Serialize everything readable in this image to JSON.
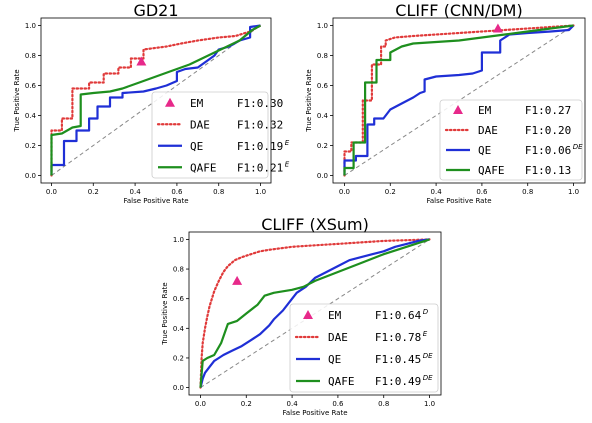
{
  "chart_data": [
    {
      "type": "line",
      "title": "GD21",
      "xlabel": "False Positive Rate",
      "ylabel": "True Positive Rate",
      "xlim": [
        -0.05,
        1.05
      ],
      "ylim": [
        -0.05,
        1.05
      ],
      "xticks": [
        "0.0",
        "0.2",
        "0.4",
        "0.6",
        "0.8",
        "1.0"
      ],
      "yticks": [
        "0.0",
        "0.2",
        "0.4",
        "0.6",
        "0.8",
        "1.0"
      ],
      "legend_position": "lower-right",
      "diagonal": true,
      "point": {
        "name": "EM",
        "f1": "F1:0.30",
        "sup": "",
        "color": "#e7298a",
        "x": 0.43,
        "y": 0.76
      },
      "series": [
        {
          "name": "DAE",
          "f1": "F1:0.32",
          "sup": "",
          "color": "#e03a3a",
          "style": "dotted",
          "x": [
            0,
            0,
            0.05,
            0.05,
            0.1,
            0.1,
            0.18,
            0.18,
            0.25,
            0.25,
            0.32,
            0.32,
            0.38,
            0.38,
            0.44,
            0.44,
            0.55,
            0.62,
            0.7,
            0.8,
            0.88,
            0.95,
            1.0
          ],
          "y": [
            0,
            0.3,
            0.3,
            0.38,
            0.38,
            0.58,
            0.58,
            0.62,
            0.62,
            0.68,
            0.68,
            0.72,
            0.72,
            0.78,
            0.78,
            0.84,
            0.86,
            0.88,
            0.9,
            0.92,
            0.93,
            0.96,
            1.0
          ]
        },
        {
          "name": "QE",
          "f1": "F1:0.19",
          "sup": "E",
          "color": "#1f2fd6",
          "style": "solid",
          "x": [
            0,
            0,
            0.06,
            0.06,
            0.12,
            0.12,
            0.18,
            0.18,
            0.22,
            0.22,
            0.28,
            0.28,
            0.34,
            0.34,
            0.44,
            0.5,
            0.55,
            0.6,
            0.6,
            0.64,
            0.7,
            0.72,
            0.78,
            0.8,
            0.85,
            0.9,
            0.95,
            0.95,
            1.0
          ],
          "y": [
            0,
            0.07,
            0.07,
            0.23,
            0.23,
            0.3,
            0.3,
            0.38,
            0.38,
            0.46,
            0.46,
            0.52,
            0.52,
            0.55,
            0.56,
            0.58,
            0.6,
            0.63,
            0.69,
            0.71,
            0.72,
            0.74,
            0.8,
            0.84,
            0.86,
            0.9,
            0.92,
            0.99,
            1.0
          ]
        },
        {
          "name": "QAFE",
          "f1": "F1:0.21",
          "sup": "E",
          "color": "#1e8f1e",
          "style": "solid",
          "x": [
            0,
            0,
            0.05,
            0.1,
            0.14,
            0.14,
            0.2,
            0.28,
            0.34,
            0.42,
            0.5,
            0.58,
            0.66,
            0.72,
            0.78,
            0.84,
            0.9,
            0.96,
            1.0
          ],
          "y": [
            0,
            0.27,
            0.28,
            0.32,
            0.33,
            0.54,
            0.55,
            0.56,
            0.58,
            0.62,
            0.66,
            0.7,
            0.74,
            0.78,
            0.82,
            0.86,
            0.9,
            0.97,
            1.0
          ]
        }
      ]
    },
    {
      "type": "line",
      "title": "CLIFF (CNN/DM)",
      "xlabel": "False Positive Rate",
      "ylabel": "True Positive Rate",
      "xlim": [
        -0.05,
        1.05
      ],
      "ylim": [
        -0.05,
        1.05
      ],
      "xticks": [
        "0.0",
        "0.2",
        "0.4",
        "0.6",
        "0.8",
        "1.0"
      ],
      "yticks": [
        "0.0",
        "0.2",
        "0.4",
        "0.6",
        "0.8",
        "1.0"
      ],
      "legend_position": "lower-right",
      "diagonal": true,
      "point": {
        "name": "EM",
        "f1": "F1:0.27",
        "sup": "",
        "color": "#e7298a",
        "x": 0.67,
        "y": 0.98
      },
      "series": [
        {
          "name": "DAE",
          "f1": "F1:0.20",
          "sup": "",
          "color": "#e03a3a",
          "style": "dotted",
          "x": [
            0,
            0,
            0.03,
            0.03,
            0.08,
            0.08,
            0.12,
            0.12,
            0.16,
            0.16,
            0.18,
            0.18,
            0.22,
            0.3,
            0.4,
            0.5,
            0.6,
            0.7,
            0.8,
            0.9,
            1.0
          ],
          "y": [
            0,
            0.16,
            0.16,
            0.22,
            0.22,
            0.5,
            0.5,
            0.74,
            0.74,
            0.86,
            0.86,
            0.9,
            0.92,
            0.93,
            0.94,
            0.95,
            0.96,
            0.97,
            0.98,
            0.99,
            1.0
          ]
        },
        {
          "name": "QE",
          "f1": "F1:0.06",
          "sup": "DE",
          "color": "#1f2fd6",
          "style": "solid",
          "x": [
            0,
            0,
            0.05,
            0.05,
            0.1,
            0.1,
            0.13,
            0.13,
            0.17,
            0.2,
            0.25,
            0.3,
            0.33,
            0.35,
            0.35,
            0.4,
            0.5,
            0.56,
            0.6,
            0.6,
            0.68,
            0.68,
            0.72,
            0.8,
            0.9,
            0.98,
            1.0
          ],
          "y": [
            0,
            0.1,
            0.1,
            0.13,
            0.13,
            0.34,
            0.34,
            0.38,
            0.38,
            0.44,
            0.48,
            0.52,
            0.55,
            0.56,
            0.64,
            0.66,
            0.67,
            0.68,
            0.7,
            0.82,
            0.82,
            0.9,
            0.94,
            0.95,
            0.96,
            0.97,
            1.0
          ]
        },
        {
          "name": "QAFE",
          "f1": "F1:0.13",
          "sup": "",
          "color": "#1e8f1e",
          "style": "solid",
          "x": [
            0,
            0,
            0.04,
            0.04,
            0.09,
            0.09,
            0.14,
            0.14,
            0.2,
            0.2,
            0.25,
            0.3,
            0.4,
            0.5,
            0.6,
            0.7,
            0.8,
            0.9,
            1.0
          ],
          "y": [
            0,
            0.05,
            0.05,
            0.22,
            0.22,
            0.62,
            0.62,
            0.77,
            0.77,
            0.82,
            0.86,
            0.88,
            0.89,
            0.9,
            0.92,
            0.94,
            0.96,
            0.98,
            1.0
          ]
        }
      ]
    },
    {
      "type": "line",
      "title": "CLIFF (XSum)",
      "xlabel": "False Positive Rate",
      "ylabel": "True Positive Rate",
      "xlim": [
        -0.05,
        1.05
      ],
      "ylim": [
        -0.05,
        1.05
      ],
      "xticks": [
        "0.0",
        "0.2",
        "0.4",
        "0.6",
        "0.8",
        "1.0"
      ],
      "yticks": [
        "0.0",
        "0.2",
        "0.4",
        "0.6",
        "0.8",
        "1.0"
      ],
      "legend_position": "lower-right",
      "diagonal": true,
      "point": {
        "name": "EM",
        "f1": "F1:0.64",
        "sup": "D",
        "color": "#e7298a",
        "x": 0.16,
        "y": 0.72
      },
      "series": [
        {
          "name": "DAE",
          "f1": "F1:0.78",
          "sup": "E",
          "color": "#e03a3a",
          "style": "dotted",
          "x": [
            0,
            0.005,
            0.01,
            0.02,
            0.03,
            0.04,
            0.05,
            0.06,
            0.08,
            0.1,
            0.12,
            0.15,
            0.18,
            0.22,
            0.26,
            0.3,
            0.35,
            0.4,
            0.5,
            0.6,
            0.7,
            0.8,
            0.9,
            1.0
          ],
          "y": [
            0,
            0.2,
            0.3,
            0.4,
            0.48,
            0.55,
            0.6,
            0.65,
            0.72,
            0.78,
            0.82,
            0.86,
            0.88,
            0.9,
            0.92,
            0.93,
            0.94,
            0.95,
            0.96,
            0.97,
            0.98,
            0.99,
            0.995,
            1.0
          ]
        },
        {
          "name": "QE",
          "f1": "F1:0.45",
          "sup": "DE",
          "color": "#1f2fd6",
          "style": "solid",
          "x": [
            0,
            0.01,
            0.02,
            0.04,
            0.06,
            0.08,
            0.1,
            0.14,
            0.18,
            0.22,
            0.26,
            0.3,
            0.32,
            0.36,
            0.4,
            0.42,
            0.46,
            0.5,
            0.55,
            0.6,
            0.65,
            0.7,
            0.75,
            0.8,
            0.85,
            0.9,
            0.95,
            1.0
          ],
          "y": [
            0,
            0.06,
            0.1,
            0.14,
            0.18,
            0.2,
            0.22,
            0.25,
            0.28,
            0.32,
            0.36,
            0.42,
            0.46,
            0.52,
            0.6,
            0.64,
            0.68,
            0.74,
            0.78,
            0.82,
            0.86,
            0.88,
            0.9,
            0.92,
            0.95,
            0.97,
            0.99,
            1.0
          ]
        },
        {
          "name": "QAFE",
          "f1": "F1:0.49",
          "sup": "DE",
          "color": "#1e8f1e",
          "style": "solid",
          "x": [
            0,
            0.01,
            0.03,
            0.06,
            0.09,
            0.12,
            0.16,
            0.2,
            0.25,
            0.28,
            0.32,
            0.36,
            0.4,
            0.45,
            0.5,
            0.6,
            0.7,
            0.8,
            0.9,
            1.0
          ],
          "y": [
            0,
            0.18,
            0.2,
            0.22,
            0.3,
            0.43,
            0.45,
            0.5,
            0.56,
            0.62,
            0.64,
            0.65,
            0.66,
            0.68,
            0.72,
            0.78,
            0.84,
            0.9,
            0.95,
            1.0
          ]
        }
      ]
    }
  ]
}
